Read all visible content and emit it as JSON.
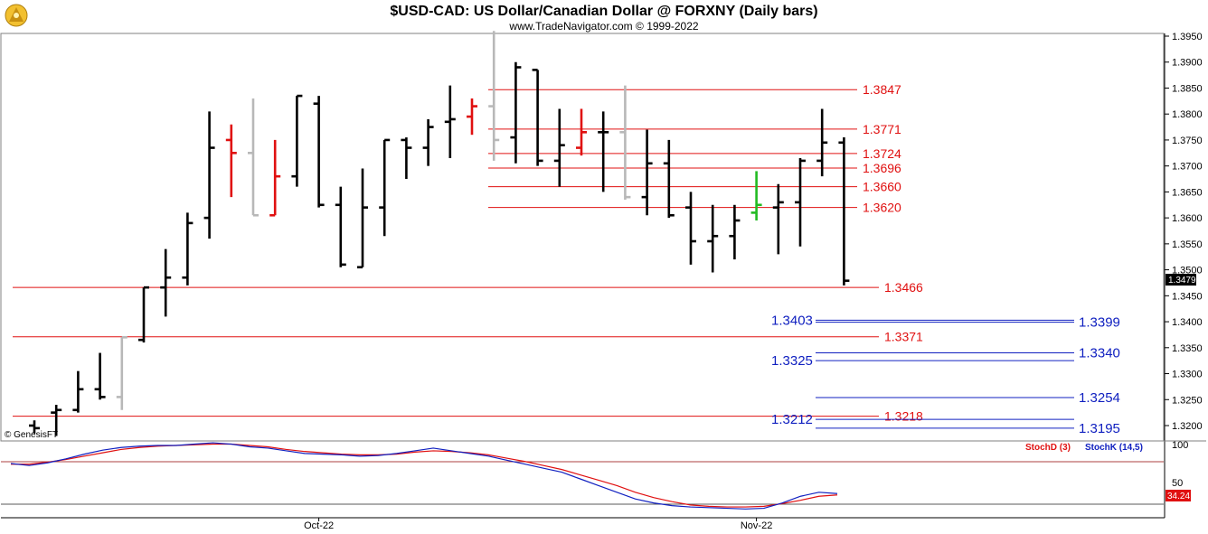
{
  "chart_data": {
    "type": "ohlc",
    "title": "$USD-CAD:  US Dollar/Canadian Dollar @ FORXNY  (Daily bars)",
    "subtitle": "www.TradeNavigator.com © 1999-2022",
    "copyright": "© GenesisFT",
    "y_range": [
      1.317,
      1.396
    ],
    "y_ticks": [
      "1.3950",
      "1.3900",
      "1.3850",
      "1.3800",
      "1.3750",
      "1.3700",
      "1.3650",
      "1.3600",
      "1.3550",
      "1.3500",
      "1.3450",
      "1.3400",
      "1.3350",
      "1.3300",
      "1.3250",
      "1.3200"
    ],
    "x_ticks": [
      "Oct-22",
      "Nov-22"
    ],
    "last_price": "1.3479",
    "colors": {
      "up_down": "#000000",
      "muted": "#b8b8b8",
      "highlight": "#e01010",
      "special": "#22bb22",
      "level_red": "#e01010",
      "level_blue": "#1020c0"
    },
    "bars": [
      {
        "o": 1.32,
        "h": 1.321,
        "l": 1.3185,
        "c": 1.3195,
        "color": "black"
      },
      {
        "o": 1.3225,
        "h": 1.324,
        "l": 1.318,
        "c": 1.323,
        "color": "black"
      },
      {
        "o": 1.323,
        "h": 1.3305,
        "l": 1.3225,
        "c": 1.327,
        "color": "black"
      },
      {
        "o": 1.327,
        "h": 1.334,
        "l": 1.325,
        "c": 1.3255,
        "color": "black"
      },
      {
        "o": 1.3255,
        "h": 1.337,
        "l": 1.323,
        "c": 1.337,
        "color": "gray"
      },
      {
        "o": 1.3365,
        "h": 1.3466,
        "l": 1.336,
        "c": 1.3466,
        "color": "black"
      },
      {
        "o": 1.3466,
        "h": 1.354,
        "l": 1.341,
        "c": 1.3485,
        "color": "black"
      },
      {
        "o": 1.3485,
        "h": 1.361,
        "l": 1.347,
        "c": 1.359,
        "color": "black"
      },
      {
        "o": 1.36,
        "h": 1.3805,
        "l": 1.356,
        "c": 1.3735,
        "color": "black"
      },
      {
        "o": 1.375,
        "h": 1.378,
        "l": 1.364,
        "c": 1.3725,
        "color": "red"
      },
      {
        "o": 1.3725,
        "h": 1.383,
        "l": 1.3605,
        "c": 1.3605,
        "color": "gray"
      },
      {
        "o": 1.3605,
        "h": 1.375,
        "l": 1.3605,
        "c": 1.368,
        "color": "red"
      },
      {
        "o": 1.368,
        "h": 1.3835,
        "l": 1.366,
        "c": 1.3835,
        "color": "black"
      },
      {
        "o": 1.382,
        "h": 1.3835,
        "l": 1.362,
        "c": 1.3625,
        "color": "black"
      },
      {
        "o": 1.3625,
        "h": 1.366,
        "l": 1.3505,
        "c": 1.351,
        "color": "black"
      },
      {
        "o": 1.3505,
        "h": 1.3695,
        "l": 1.3505,
        "c": 1.362,
        "color": "black"
      },
      {
        "o": 1.362,
        "h": 1.375,
        "l": 1.3565,
        "c": 1.375,
        "color": "black"
      },
      {
        "o": 1.375,
        "h": 1.3755,
        "l": 1.3675,
        "c": 1.3735,
        "color": "black"
      },
      {
        "o": 1.3735,
        "h": 1.379,
        "l": 1.37,
        "c": 1.3775,
        "color": "black"
      },
      {
        "o": 1.3785,
        "h": 1.3855,
        "l": 1.3715,
        "c": 1.379,
        "color": "black"
      },
      {
        "o": 1.3795,
        "h": 1.383,
        "l": 1.376,
        "c": 1.3815,
        "color": "red"
      },
      {
        "o": 1.3815,
        "h": 1.396,
        "l": 1.371,
        "c": 1.375,
        "color": "gray"
      },
      {
        "o": 1.3755,
        "h": 1.39,
        "l": 1.3705,
        "c": 1.389,
        "color": "black"
      },
      {
        "o": 1.3885,
        "h": 1.3885,
        "l": 1.37,
        "c": 1.371,
        "color": "black"
      },
      {
        "o": 1.371,
        "h": 1.381,
        "l": 1.366,
        "c": 1.374,
        "color": "black"
      },
      {
        "o": 1.3735,
        "h": 1.381,
        "l": 1.372,
        "c": 1.3765,
        "color": "red"
      },
      {
        "o": 1.3765,
        "h": 1.3805,
        "l": 1.365,
        "c": 1.3765,
        "color": "black"
      },
      {
        "o": 1.3765,
        "h": 1.3855,
        "l": 1.3635,
        "c": 1.364,
        "color": "gray"
      },
      {
        "o": 1.364,
        "h": 1.377,
        "l": 1.3605,
        "c": 1.3705,
        "color": "black"
      },
      {
        "o": 1.3705,
        "h": 1.375,
        "l": 1.36,
        "c": 1.3605,
        "color": "black"
      },
      {
        "o": 1.362,
        "h": 1.365,
        "l": 1.351,
        "c": 1.3555,
        "color": "black"
      },
      {
        "o": 1.3555,
        "h": 1.3625,
        "l": 1.3495,
        "c": 1.3565,
        "color": "black"
      },
      {
        "o": 1.3565,
        "h": 1.3625,
        "l": 1.352,
        "c": 1.3595,
        "color": "black"
      },
      {
        "o": 1.361,
        "h": 1.369,
        "l": 1.3595,
        "c": 1.3625,
        "color": "green"
      },
      {
        "o": 1.362,
        "h": 1.3665,
        "l": 1.353,
        "c": 1.363,
        "color": "black"
      },
      {
        "o": 1.363,
        "h": 1.3715,
        "l": 1.3545,
        "c": 1.371,
        "color": "black"
      },
      {
        "o": 1.371,
        "h": 1.381,
        "l": 1.368,
        "c": 1.3745,
        "color": "black"
      },
      {
        "o": 1.3745,
        "h": 1.3755,
        "l": 1.347,
        "c": 1.3479,
        "color": "black"
      }
    ],
    "red_levels": [
      {
        "label": "1.3847",
        "value": 1.3847,
        "extent": "short"
      },
      {
        "label": "1.3771",
        "value": 1.3771,
        "extent": "short"
      },
      {
        "label": "1.3724",
        "value": 1.3724,
        "extent": "short"
      },
      {
        "label": "1.3696",
        "value": 1.3696,
        "extent": "short"
      },
      {
        "label": "1.3660",
        "value": 1.366,
        "extent": "short"
      },
      {
        "label": "1.3620",
        "value": 1.362,
        "extent": "short"
      },
      {
        "label": "1.3466",
        "value": 1.3466,
        "extent": "full"
      },
      {
        "label": "1.3371",
        "value": 1.3371,
        "extent": "full"
      },
      {
        "label": "1.3218",
        "value": 1.3218,
        "extent": "full"
      }
    ],
    "blue_levels": [
      {
        "left_label": "1.3403",
        "right_label": "1.3399",
        "left": 1.3403,
        "right": 1.3399
      },
      {
        "left_label": "1.3325",
        "right_label": "1.3340",
        "left": 1.3325,
        "right": 1.334
      },
      {
        "left_label": "",
        "right_label": "1.3254",
        "left": 1.3254,
        "right": 1.3254
      },
      {
        "left_label": "1.3212",
        "right_label": "1.3195",
        "left": 1.3212,
        "right": 1.3195
      }
    ],
    "stochastic": {
      "legend_d": "StochD (3)",
      "legend_k": "StochK (14,5)",
      "tick_100": "100",
      "tick_50": "50",
      "last_value": "34.24",
      "y_range": [
        0,
        100
      ],
      "ref_lines": [
        80,
        20
      ],
      "stoch_k": [
        73,
        70,
        74,
        80,
        87,
        93,
        97,
        99,
        100,
        100,
        102,
        104,
        102,
        98,
        96,
        92,
        88,
        87,
        86,
        84,
        85,
        88,
        92,
        96,
        92,
        88,
        84,
        78,
        72,
        66,
        60,
        50,
        40,
        30,
        20,
        14,
        10,
        8,
        7,
        6,
        5,
        6,
        14,
        24,
        30,
        28
      ],
      "stoch_d": [
        72,
        72,
        75,
        79,
        84,
        89,
        94,
        97,
        99,
        100,
        101,
        102,
        102,
        100,
        98,
        94,
        91,
        89,
        87,
        86,
        86,
        87,
        90,
        92,
        91,
        89,
        86,
        81,
        76,
        70,
        64,
        56,
        48,
        40,
        30,
        22,
        16,
        11,
        9,
        8,
        8,
        9,
        13,
        18,
        24,
        26
      ]
    }
  }
}
